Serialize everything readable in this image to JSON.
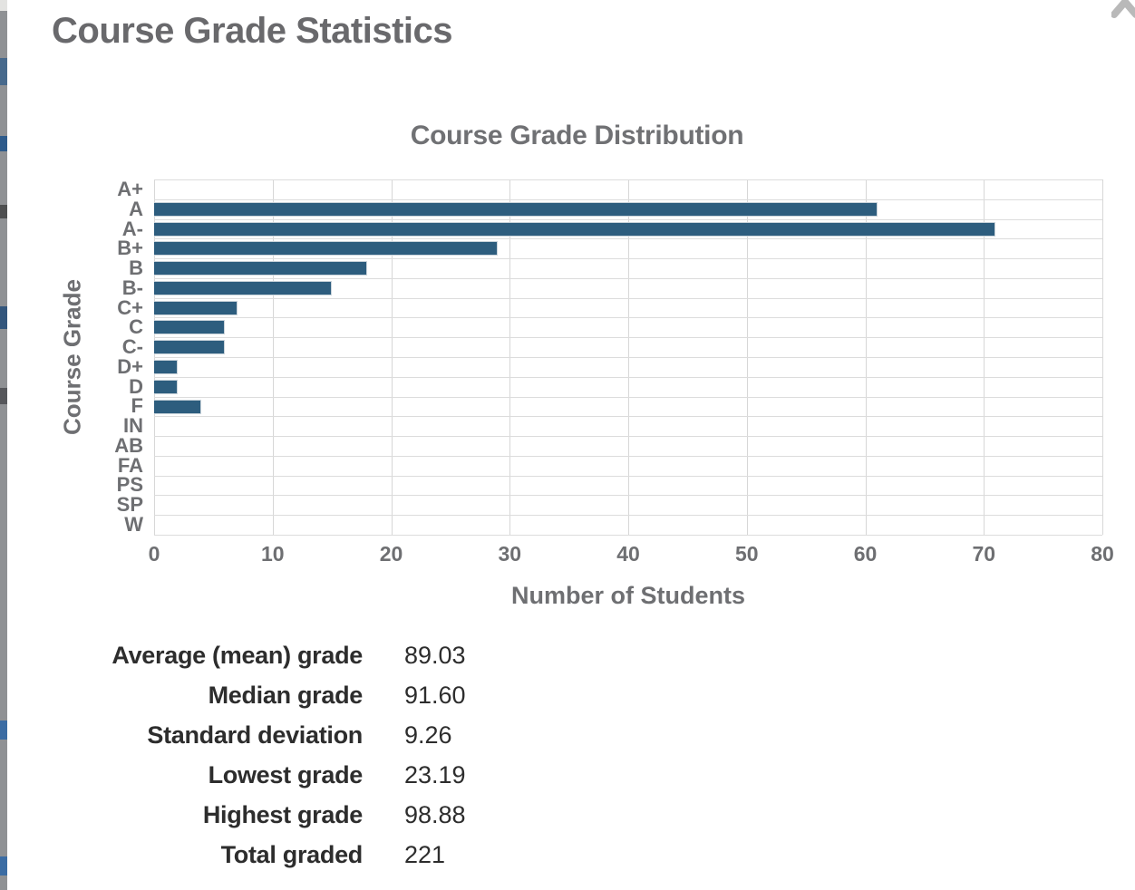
{
  "page": {
    "title": "Course Grade Statistics"
  },
  "icons": {
    "corner": "chevron-up-icon"
  },
  "chart_data": {
    "type": "bar",
    "orientation": "horizontal",
    "title": "Course Grade Distribution",
    "categories": [
      "A+",
      "A",
      "A-",
      "B+",
      "B",
      "B-",
      "C+",
      "C",
      "C-",
      "D+",
      "D",
      "F",
      "IN",
      "AB",
      "FA",
      "PS",
      "SP",
      "W"
    ],
    "values": [
      0,
      61,
      71,
      29,
      18,
      15,
      7,
      6,
      6,
      2,
      2,
      4,
      0,
      0,
      0,
      0,
      0,
      0
    ],
    "xlabel": "Number of Students",
    "ylabel": "Course Grade",
    "xlim": [
      0,
      80
    ],
    "x_ticks": [
      0,
      10,
      20,
      30,
      40,
      50,
      60,
      70,
      80
    ],
    "grid": true,
    "legend": false,
    "bar_color": "#2d5d7e",
    "axis_text_color": "#6e6f72"
  },
  "stats": {
    "rows": [
      {
        "label": "Average (mean) grade",
        "value": "89.03"
      },
      {
        "label": "Median grade",
        "value": "91.60"
      },
      {
        "label": "Standard deviation",
        "value": "9.26"
      },
      {
        "label": "Lowest grade",
        "value": "23.19"
      },
      {
        "label": "Highest grade",
        "value": "98.88"
      },
      {
        "label": "Total graded",
        "value": "221"
      }
    ]
  }
}
